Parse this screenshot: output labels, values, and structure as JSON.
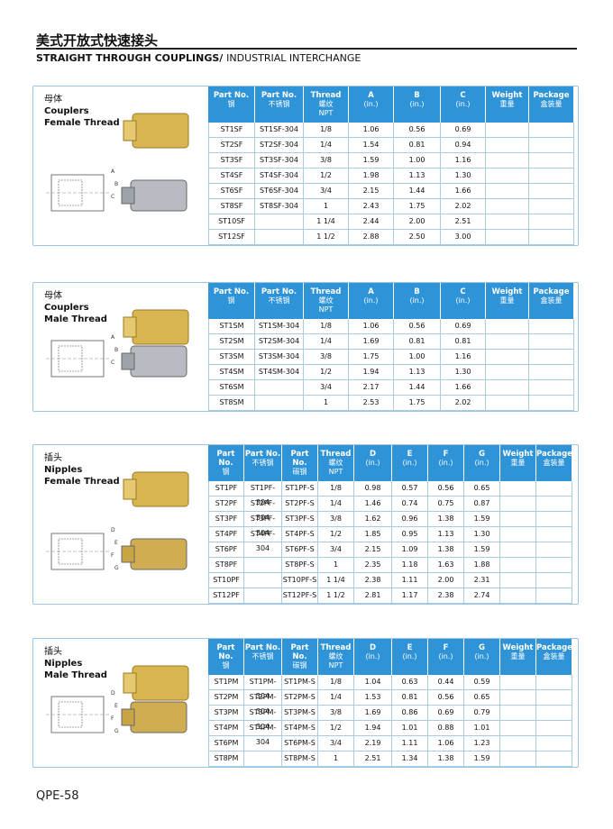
{
  "header": {
    "title_cn": "美式开放式快速接头",
    "title_en": "STRAIGHT THROUGH COUPLINGS/",
    "subtitle": "INDUSTRIAL INTERCHANGE"
  },
  "sections": [
    {
      "label_cn": "母体",
      "label_en": "Couplers",
      "label_sub": "Female Thread",
      "drawing_labels": [
        "A",
        "B",
        "C"
      ],
      "columns": [
        [
          "Part No.",
          "钢"
        ],
        [
          "Part No.",
          "不锈钢"
        ],
        [
          "Thread",
          "螺纹",
          "NPT"
        ],
        [
          "A",
          "(in.)"
        ],
        [
          "B",
          "(in.)"
        ],
        [
          "C",
          "(in.)"
        ],
        [
          "Weight",
          "重量"
        ],
        [
          "Package",
          "盒装量"
        ]
      ],
      "rows": [
        [
          "ST1SF",
          "ST1SF-304",
          "1/8",
          "1.06",
          "0.56",
          "0.69"
        ],
        [
          "ST2SF",
          "ST2SF-304",
          "1/4",
          "1.54",
          "0.81",
          "0.94"
        ],
        [
          "ST3SF",
          "ST3SF-304",
          "3/8",
          "1.59",
          "1.00",
          "1.16"
        ],
        [
          "ST4SF",
          "ST4SF-304",
          "1/2",
          "1.98",
          "1.13",
          "1.30"
        ],
        [
          "ST6SF",
          "ST6SF-304",
          "3/4",
          "2.15",
          "1.44",
          "1.66"
        ],
        [
          "ST8SF",
          "ST8SF-304",
          "1",
          "2.43",
          "1.75",
          "2.02"
        ],
        [
          "ST10SF",
          null,
          "1 1/4",
          "2.44",
          "2.00",
          "2.51"
        ],
        [
          "ST12SF",
          null,
          "1 1/2",
          "2.88",
          "2.50",
          "3.00"
        ]
      ]
    },
    {
      "label_cn": "母体",
      "label_en": "Couplers",
      "label_sub": "Male Thread",
      "drawing_labels": [
        "A",
        "B",
        "C"
      ],
      "columns": [
        [
          "Part No.",
          "钢"
        ],
        [
          "Part No.",
          "不锈钢"
        ],
        [
          "Thread",
          "螺纹",
          "NPT"
        ],
        [
          "A",
          "(in.)"
        ],
        [
          "B",
          "(in.)"
        ],
        [
          "C",
          "(in.)"
        ],
        [
          "Weight",
          "重量"
        ],
        [
          "Package",
          "盒装量"
        ]
      ],
      "rows": [
        [
          "ST1SM",
          "ST1SM-304",
          "1/8",
          "1.06",
          "0.56",
          "0.69"
        ],
        [
          "ST2SM",
          "ST2SM-304",
          "1/4",
          "1.69",
          "0.81",
          "0.81"
        ],
        [
          "ST3SM",
          "ST3SM-304",
          "3/8",
          "1.75",
          "1.00",
          "1.16"
        ],
        [
          "ST4SM",
          "ST4SM-304",
          "1/2",
          "1.94",
          "1.13",
          "1.30"
        ],
        [
          "ST6SM",
          null,
          "3/4",
          "2.17",
          "1.44",
          "1.66"
        ],
        [
          "ST8SM",
          null,
          "1",
          "2.53",
          "1.75",
          "2.02"
        ]
      ]
    },
    {
      "label_cn": "插头",
      "label_en": "Nipples",
      "label_sub": "Female Thread",
      "drawing_labels": [
        "D",
        "E",
        "F",
        "G"
      ],
      "columns": [
        [
          "Part No.",
          "钢"
        ],
        [
          "Part No.",
          "不锈钢"
        ],
        [
          "Part No.",
          "碳钢"
        ],
        [
          "Thread",
          "螺纹",
          "NPT"
        ],
        [
          "D",
          "(in.)"
        ],
        [
          "E",
          "(in.)"
        ],
        [
          "F",
          "(in.)"
        ],
        [
          "G",
          "(in.)"
        ],
        [
          "Weight",
          "重量"
        ],
        [
          "Package",
          "盒装量"
        ]
      ],
      "rows": [
        [
          "ST1PF",
          "ST1PF-304",
          "ST1PF-S",
          "1/8",
          "0.98",
          "0.57",
          "0.56",
          "0.65"
        ],
        [
          "ST2PF",
          "ST2PF-304",
          "ST2PF-S",
          "1/4",
          "1.46",
          "0.74",
          "0.75",
          "0.87"
        ],
        [
          "ST3PF",
          "ST3PF-304",
          "ST3PF-S",
          "3/8",
          "1.62",
          "0.96",
          "1.38",
          "1.59"
        ],
        [
          "ST4PF",
          "ST4PF-304",
          "ST4PF-S",
          "1/2",
          "1.85",
          "0.95",
          "1.13",
          "1.30"
        ],
        [
          "ST6PF",
          null,
          "ST6PF-S",
          "3/4",
          "2.15",
          "1.09",
          "1.38",
          "1.59"
        ],
        [
          "ST8PF",
          null,
          "ST8PF-S",
          "1",
          "2.35",
          "1.18",
          "1.63",
          "1.88"
        ],
        [
          "ST10PF",
          null,
          "ST10PF-S",
          "1 1/4",
          "2.38",
          "1.11",
          "2.00",
          "2.31"
        ],
        [
          "ST12PF",
          null,
          "ST12PF-S",
          "1 1/2",
          "2.81",
          "1.17",
          "2.38",
          "2.74"
        ]
      ]
    },
    {
      "label_cn": "插头",
      "label_en": "Nipples",
      "label_sub": "Male Thread",
      "drawing_labels": [
        "D",
        "E",
        "F",
        "G"
      ],
      "columns": [
        [
          "Part No.",
          "钢"
        ],
        [
          "Part No.",
          "不锈钢"
        ],
        [
          "Part No.",
          "碳钢"
        ],
        [
          "Thread",
          "螺纹",
          "NPT"
        ],
        [
          "D",
          "(in.)"
        ],
        [
          "E",
          "(in.)"
        ],
        [
          "F",
          "(in.)"
        ],
        [
          "G",
          "(in.)"
        ],
        [
          "Weight",
          "重量"
        ],
        [
          "Package",
          "盒装量"
        ]
      ],
      "rows": [
        [
          "ST1PM",
          "ST1PM-304",
          "ST1PM-S",
          "1/8",
          "1.04",
          "0.63",
          "0.44",
          "0.59"
        ],
        [
          "ST2PM",
          "ST2PM-304",
          "ST2PM-S",
          "1/4",
          "1.53",
          "0.81",
          "0.56",
          "0.65"
        ],
        [
          "ST3PM",
          "ST3PM-304",
          "ST3PM-S",
          "3/8",
          "1.69",
          "0.86",
          "0.69",
          "0.79"
        ],
        [
          "ST4PM",
          "ST4PM-304",
          "ST4PM-S",
          "1/2",
          "1.94",
          "1.01",
          "0.88",
          "1.01"
        ],
        [
          "ST6PM",
          null,
          "ST6PM-S",
          "3/4",
          "2.19",
          "1.11",
          "1.06",
          "1.23"
        ],
        [
          "ST8PM",
          null,
          "ST8PM-S",
          "1",
          "2.51",
          "1.34",
          "1.38",
          "1.59"
        ]
      ]
    }
  ],
  "footer": {
    "page": "QPE-58"
  }
}
